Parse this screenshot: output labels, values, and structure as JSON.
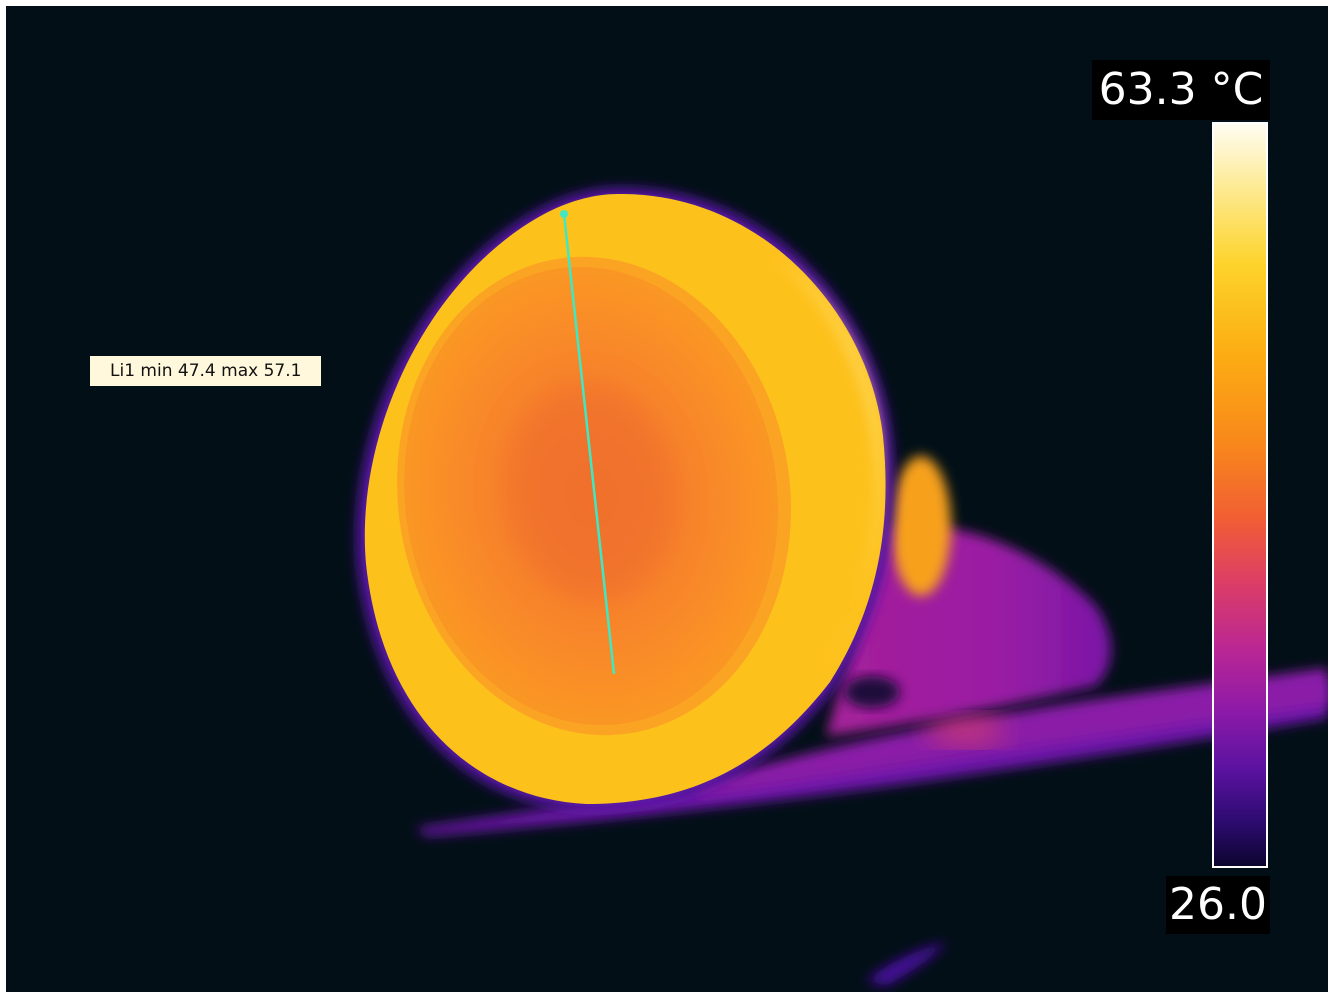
{
  "measurement": {
    "line_label": "Li1 min 47.4 max 57.1"
  },
  "scale": {
    "max_label": "63.3 °C",
    "min_label": "26.0"
  },
  "colors": {
    "background": "#020f17",
    "line_marker": "#3fe8c4",
    "palette": [
      "#fefdf2",
      "#fde98e",
      "#fdd32a",
      "#fcad13",
      "#f8881b",
      "#f15f33",
      "#db3d67",
      "#b92694",
      "#8e1aa8",
      "#5b12a0",
      "#2d0b70",
      "#0c0530"
    ]
  }
}
